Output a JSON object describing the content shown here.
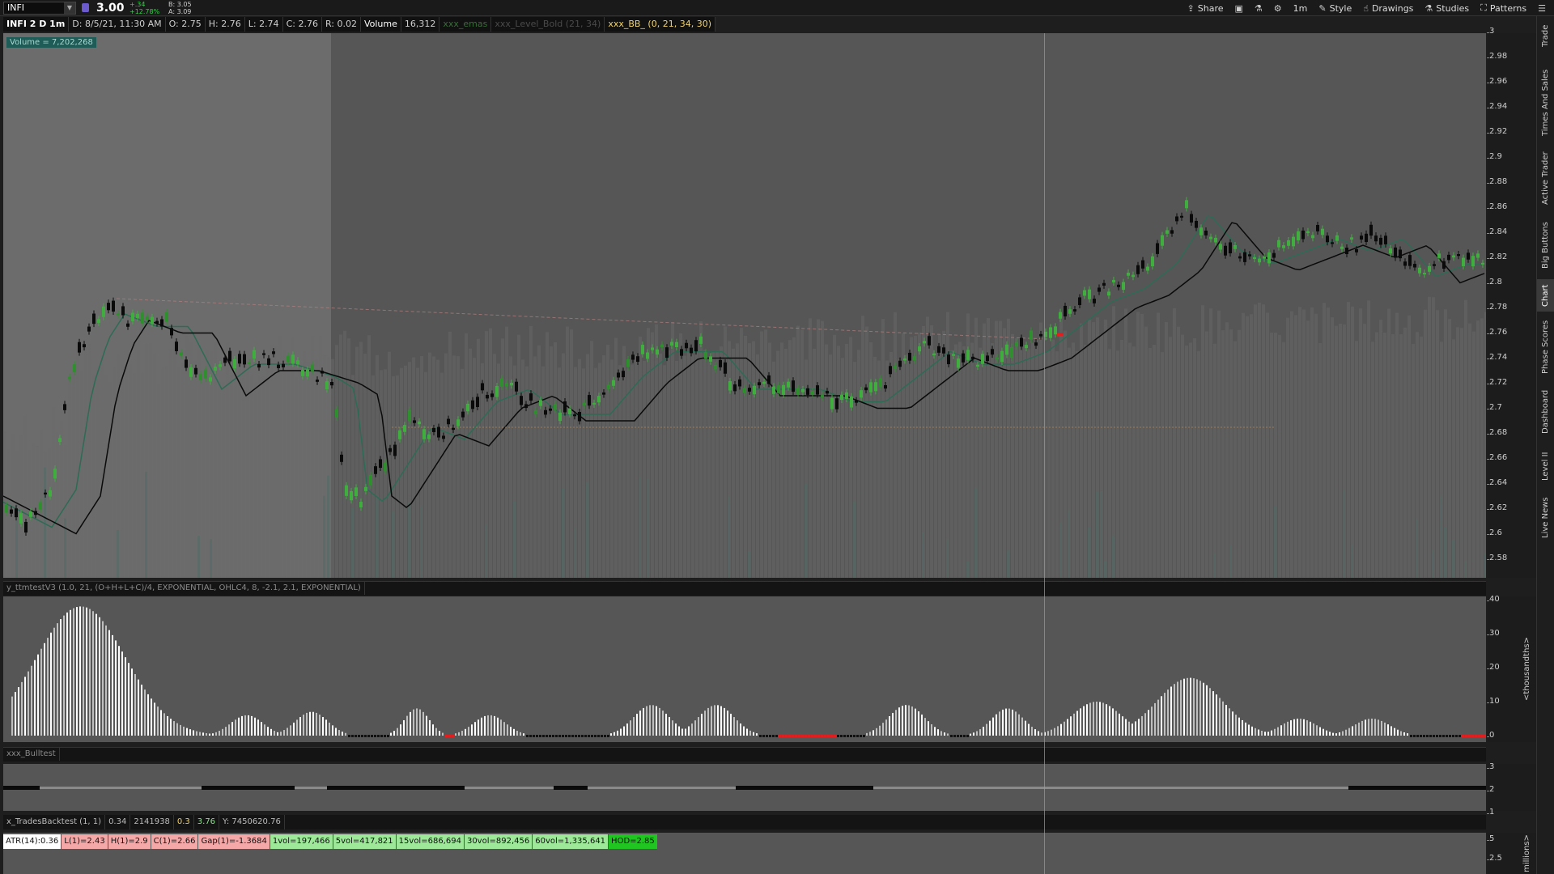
{
  "toolbar": {
    "symbol": "INFI",
    "last_price": "3.00",
    "change": "+.34",
    "change_pct": "+12.78%",
    "bid": "B: 3.05",
    "ask": "A: 3.09",
    "buttons": {
      "share": "Share",
      "style": "Style",
      "drawings": "Drawings",
      "studies": "Studies",
      "patterns": "Patterns"
    },
    "time_frame": "1m"
  },
  "status": {
    "title": "INFI 2 D 1m",
    "date": "D: 8/5/21, 11:30 AM",
    "open": "O: 2.75",
    "high": "H: 2.76",
    "low": "L: 2.74",
    "close": "C: 2.76",
    "range": "R: 0.02",
    "volume_label": "Volume",
    "volume_value": "16,312",
    "study1": "xxx_emas",
    "study2": "xxx_Level_Bold (21, 34)",
    "study3": "xxx_BB_ (0, 21, 34, 30)"
  },
  "volume_badge": "Volume = 7,202,268",
  "price_axis": [
    "3",
    "2.98",
    "2.96",
    "2.94",
    "2.92",
    "2.9",
    "2.88",
    "2.86",
    "2.84",
    "2.82",
    "2.8",
    "2.78",
    "2.76",
    "2.74",
    "2.72",
    "2.7",
    "2.68",
    "2.66",
    "2.64",
    "2.62",
    "2.6",
    "2.58"
  ],
  "oscillator": {
    "header": "y_ttmtestV3 (1.0, 21, (O+H+L+C)/4, EXPONENTIAL, OHLC4, 8, -2.1, 2.1, EXPONENTIAL)",
    "axis": [
      "40",
      "30",
      "20",
      "10",
      "0"
    ],
    "unit": "<thousandths>"
  },
  "bull": {
    "header": "xxx_Bulltest",
    "axis": [
      "3",
      "2",
      "1"
    ]
  },
  "trades": {
    "name": "x_TradesBacktest (1, 1)",
    "v1": "0.34",
    "v2": "2141938",
    "v3": "0.3",
    "v4": "3.76",
    "v5": "Y: 7450620.76"
  },
  "stats": [
    {
      "text": "ATR(14):0.36",
      "color": "#ffffff"
    },
    {
      "text": "L(1)=2.43",
      "color": "#f4a8a8"
    },
    {
      "text": "H(1)=2.9",
      "color": "#f4a8a8"
    },
    {
      "text": "C(1)=2.66",
      "color": "#f4a8a8"
    },
    {
      "text": "Gap(1)=-1.3684",
      "color": "#f4a8a8"
    },
    {
      "text": "1vol=197,466",
      "color": "#9ee89a"
    },
    {
      "text": "5vol=417,821",
      "color": "#9ee89a"
    },
    {
      "text": "15vol=686,694",
      "color": "#9ee89a"
    },
    {
      "text": "30vol=892,456",
      "color": "#9ee89a"
    },
    {
      "text": "60vol=1,335,641",
      "color": "#9ee89a"
    },
    {
      "text": "HOD=2.85",
      "color": "#21c521"
    }
  ],
  "bottom_axis": [
    "5",
    "2.5"
  ],
  "bottom_unit": "millions>",
  "side_tabs": [
    "Trade",
    "Times And Sales",
    "Active Trader",
    "Big Buttons",
    "Chart",
    "Phase Scores",
    "Dashboard",
    "Level II",
    "Live News"
  ],
  "colors": {
    "up": "#3fae3f",
    "down": "#000000",
    "ema": "#2e6b55"
  }
}
